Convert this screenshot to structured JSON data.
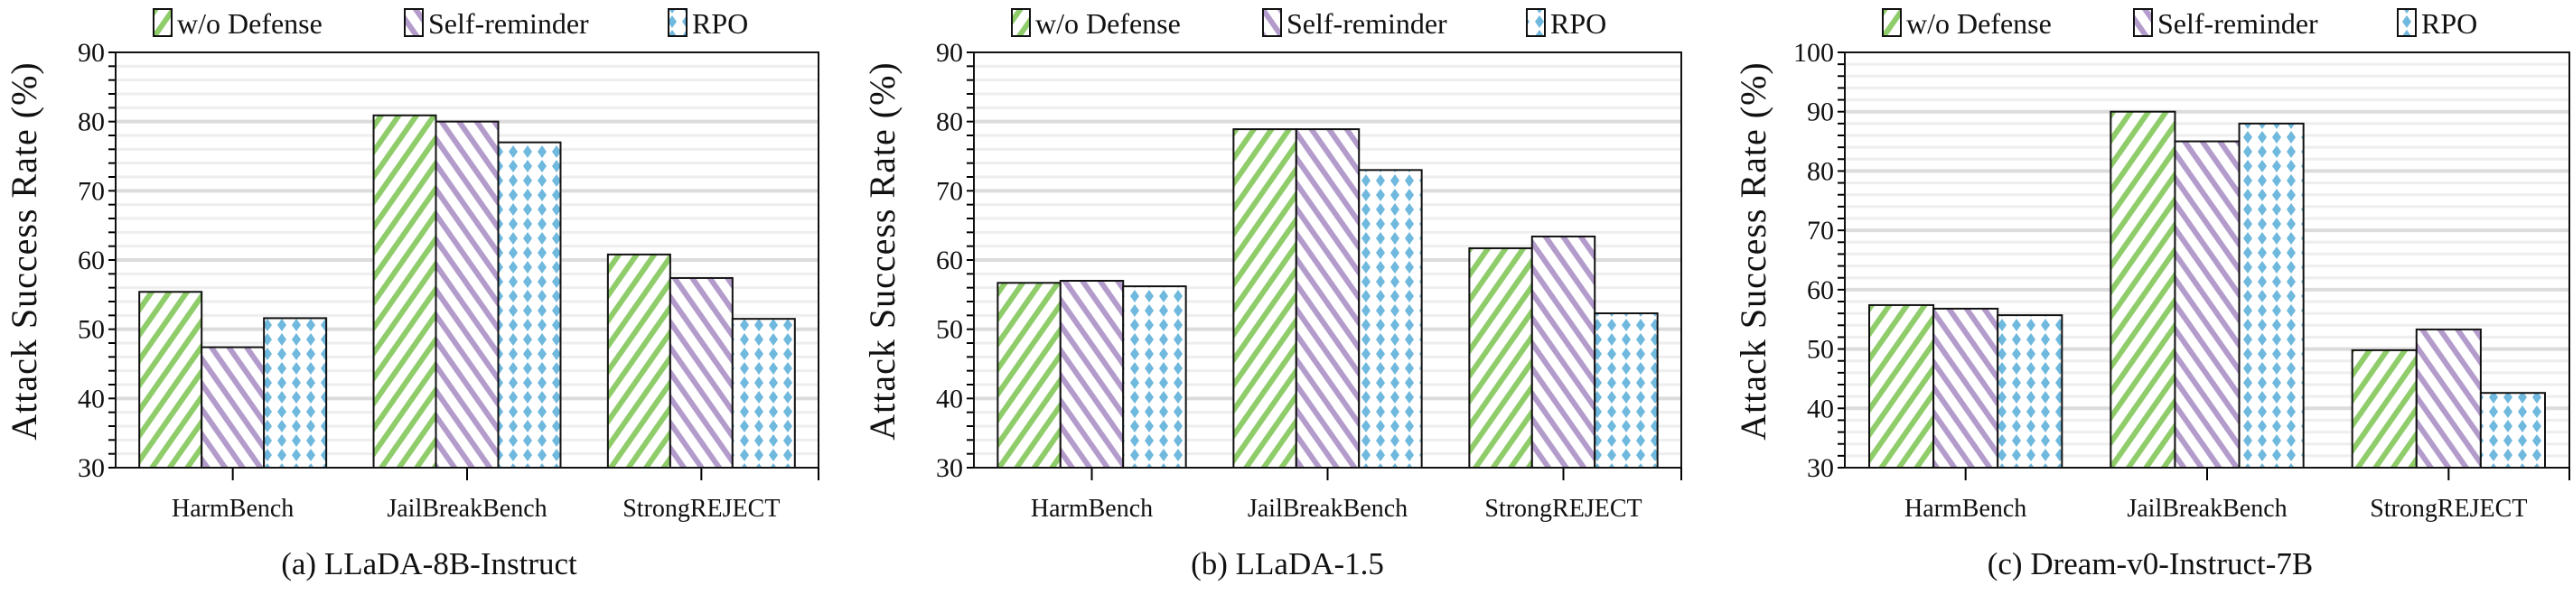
{
  "colors": {
    "w/o Defense": "#8fcc6a",
    "Self-reminder": "#b39bcb",
    "RPO": "#6fb8de",
    "grid": "#e6e6e6"
  },
  "chart_data": [
    {
      "type": "bar",
      "caption": "(a) LLaDA-8B-Instruct",
      "ylabel": "Attack Success Rate (%)",
      "xlabel": "",
      "ylim": [
        30,
        90
      ],
      "yticks": [
        30,
        40,
        50,
        60,
        70,
        80,
        90
      ],
      "grid": true,
      "legend": "top",
      "categories": [
        "HarmBench",
        "JailBreakBench",
        "StrongREJECT"
      ],
      "series": [
        {
          "name": "w/o Defense",
          "pattern": "diagonal-stripes",
          "values": [
            55.4,
            80.9,
            60.8
          ]
        },
        {
          "name": "Self-reminder",
          "pattern": "back-diagonal-stripes",
          "values": [
            47.4,
            80.0,
            57.4
          ]
        },
        {
          "name": "RPO",
          "pattern": "diamonds",
          "values": [
            51.6,
            77.0,
            51.5
          ]
        }
      ]
    },
    {
      "type": "bar",
      "caption": "(b) LLaDA-1.5",
      "ylabel": "Attack Success Rate (%)",
      "xlabel": "",
      "ylim": [
        30,
        90
      ],
      "yticks": [
        30,
        40,
        50,
        60,
        70,
        80,
        90
      ],
      "grid": true,
      "legend": "top",
      "categories": [
        "HarmBench",
        "JailBreakBench",
        "StrongREJECT"
      ],
      "series": [
        {
          "name": "w/o Defense",
          "pattern": "diagonal-stripes",
          "values": [
            56.7,
            78.9,
            61.7
          ]
        },
        {
          "name": "Self-reminder",
          "pattern": "back-diagonal-stripes",
          "values": [
            57.0,
            78.9,
            63.4
          ]
        },
        {
          "name": "RPO",
          "pattern": "diamonds",
          "values": [
            56.2,
            73.0,
            52.3
          ]
        }
      ]
    },
    {
      "type": "bar",
      "caption": "(c) Dream-v0-Instruct-7B",
      "ylabel": "Attack Success Rate (%)",
      "xlabel": "",
      "ylim": [
        30,
        100
      ],
      "yticks": [
        30,
        40,
        50,
        60,
        70,
        80,
        90,
        100
      ],
      "grid": true,
      "legend": "top",
      "categories": [
        "HarmBench",
        "JailBreakBench",
        "StrongREJECT"
      ],
      "series": [
        {
          "name": "w/o Defense",
          "pattern": "diagonal-stripes",
          "values": [
            57.4,
            90.0,
            49.8
          ]
        },
        {
          "name": "Self-reminder",
          "pattern": "back-diagonal-stripes",
          "values": [
            56.8,
            85.0,
            53.3
          ]
        },
        {
          "name": "RPO",
          "pattern": "diamonds",
          "values": [
            55.7,
            88.0,
            42.6
          ]
        }
      ]
    }
  ]
}
